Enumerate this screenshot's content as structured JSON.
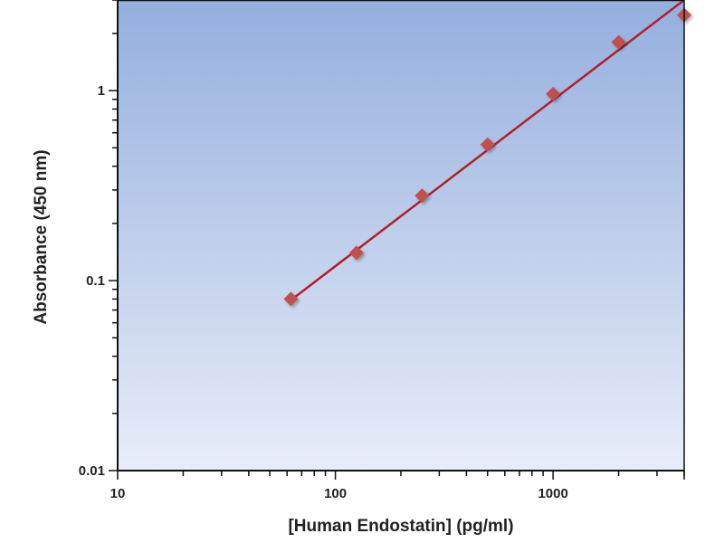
{
  "chart_data": {
    "type": "scatter",
    "title": "",
    "xlabel": "[Human Endostatin] (pg/ml)",
    "ylabel": "Absorbance (450 nm)",
    "x_scale": "log",
    "y_scale": "log",
    "xlim": [
      10,
      4000
    ],
    "ylim": [
      0.01,
      3
    ],
    "x_ticks": [
      10,
      100,
      1000
    ],
    "x_tick_labels": [
      "10",
      "100",
      "1000"
    ],
    "y_ticks": [
      0.01,
      0.1,
      1
    ],
    "y_tick_labels": [
      "0.01",
      "0.1",
      "1"
    ],
    "grid": false,
    "legend": "none",
    "series": [
      {
        "x": [
          62.5,
          125,
          250,
          500,
          1000,
          2000,
          4000
        ],
        "y": [
          0.08,
          0.14,
          0.28,
          0.52,
          0.96,
          1.8,
          2.5
        ],
        "marker": "diamond",
        "color": "#c0504d"
      }
    ],
    "fit_line": {
      "x": [
        62.5,
        4000
      ],
      "y": [
        0.079,
        3.0
      ],
      "color": "#b0202a"
    },
    "background_gradient": [
      "#94afde",
      "#e8edf8"
    ]
  }
}
